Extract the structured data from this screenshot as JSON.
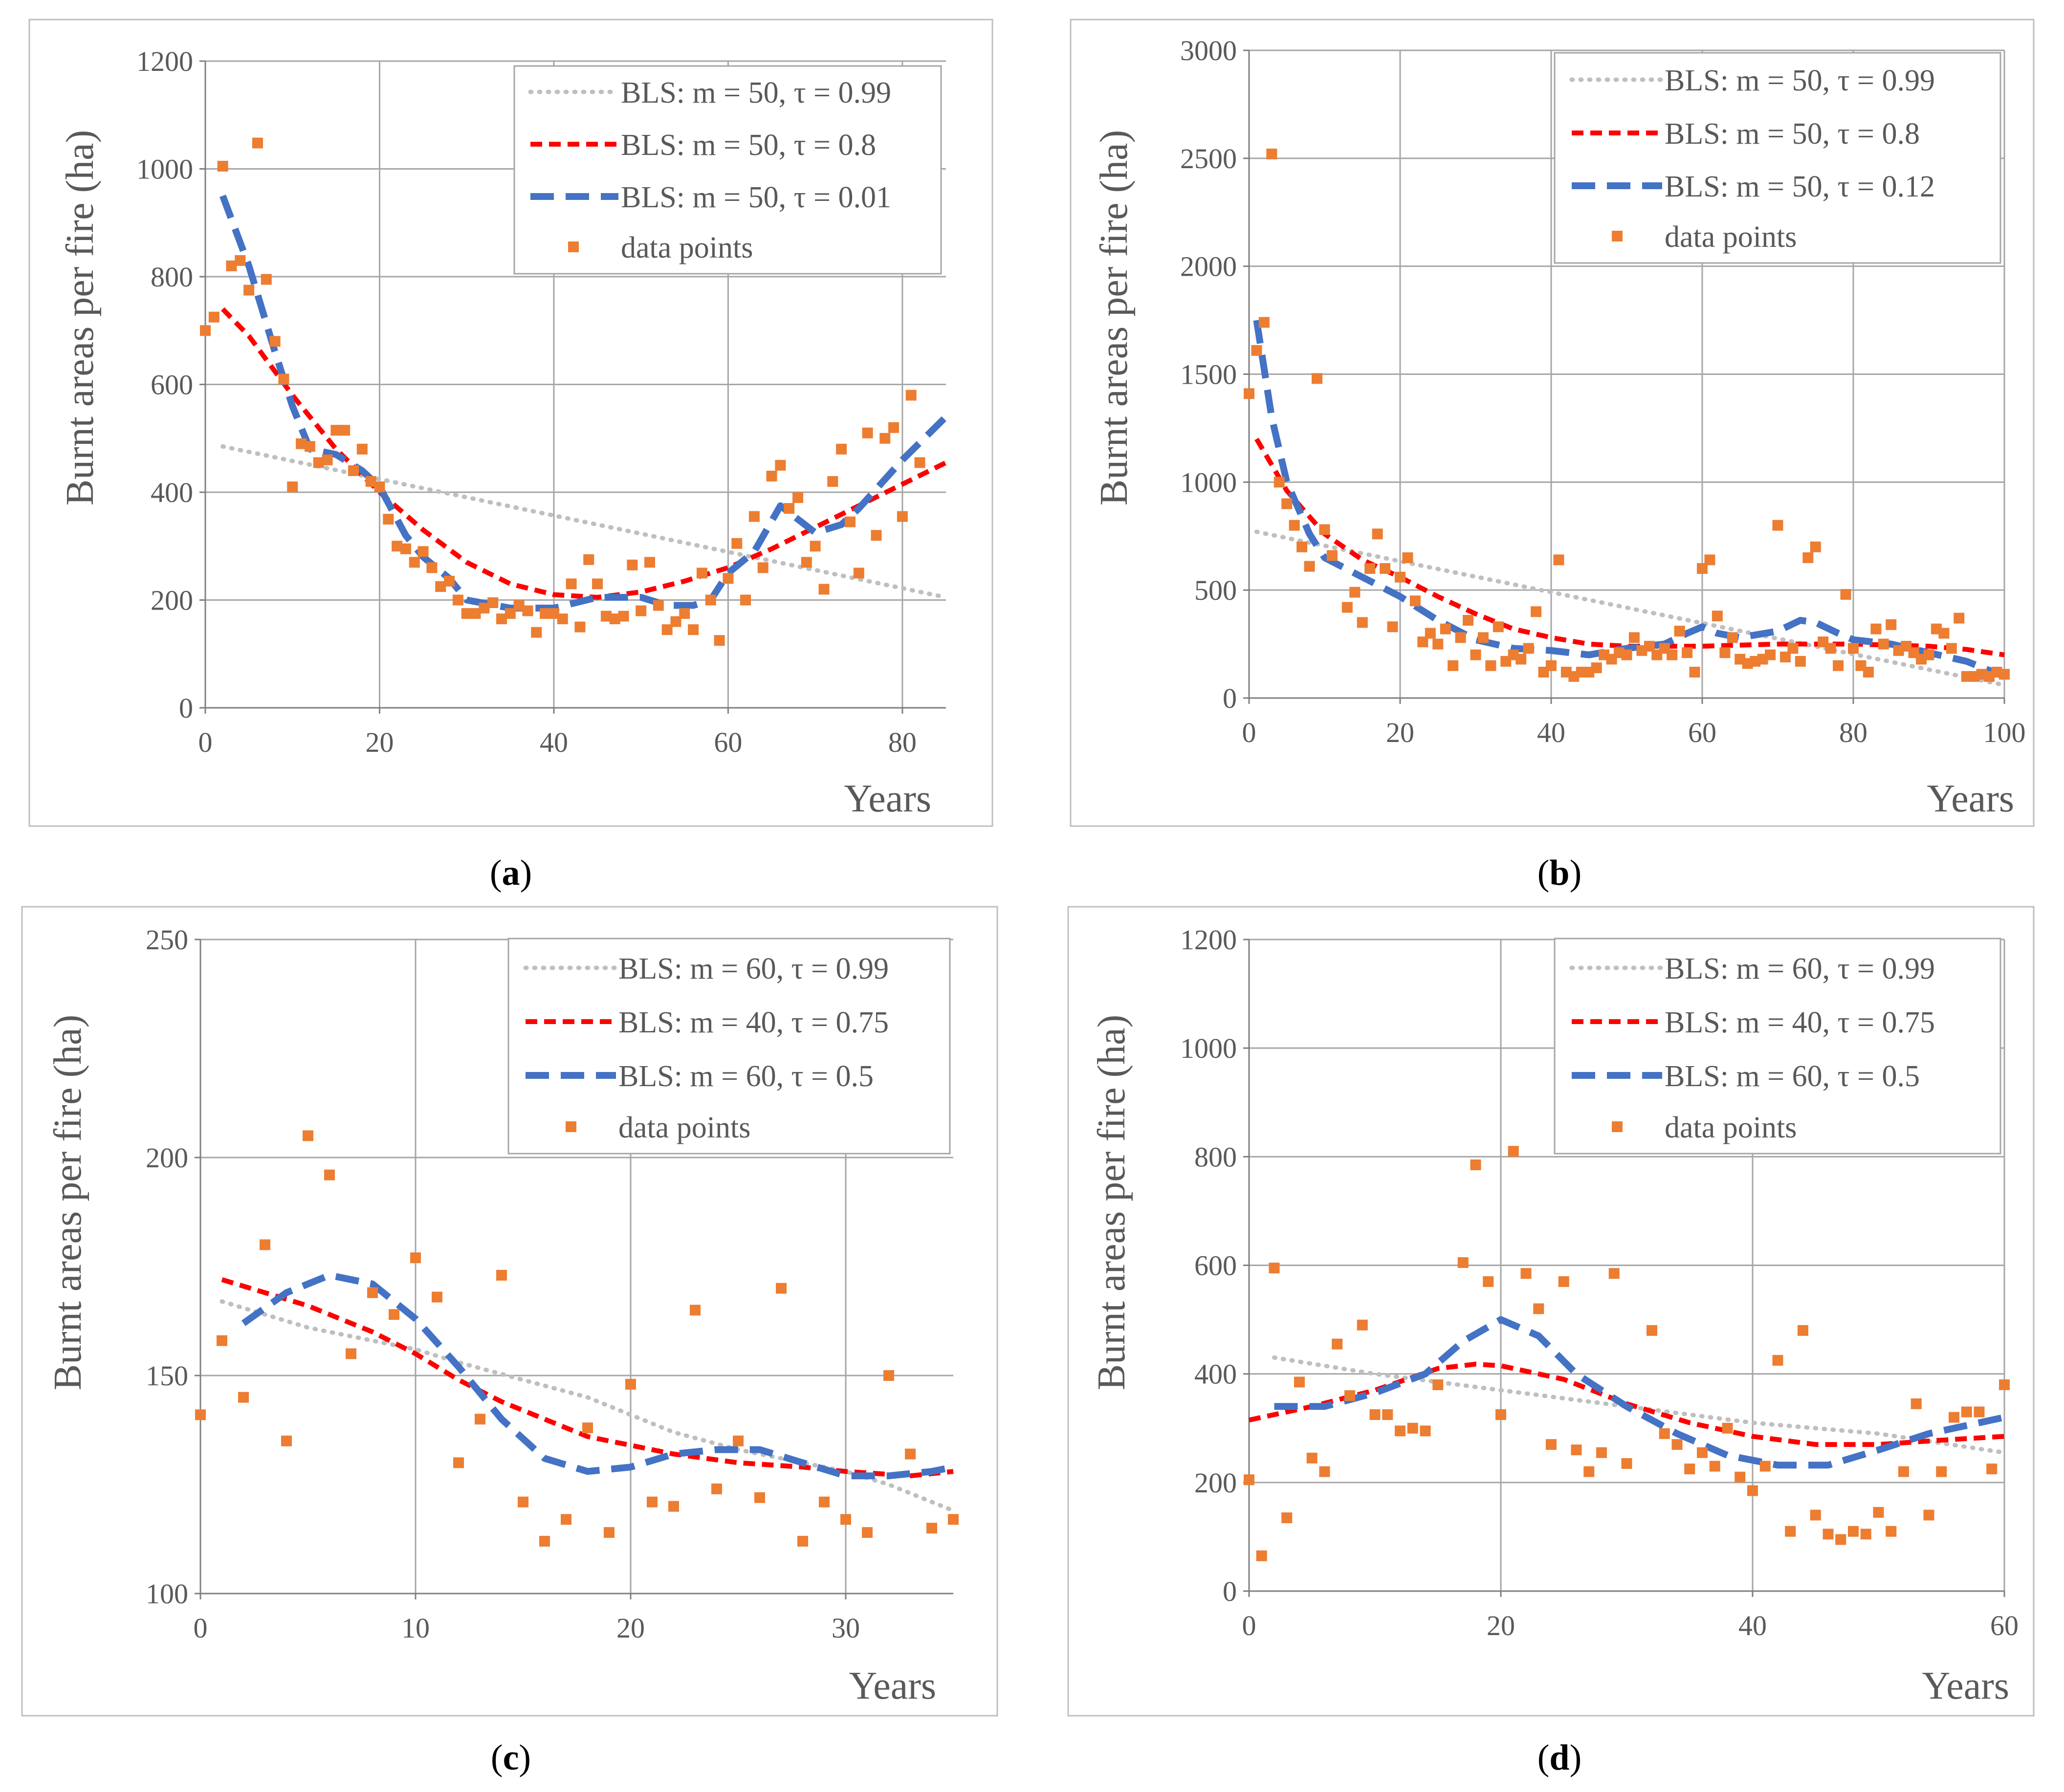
{
  "style": {
    "grid_color": "#a6a6a6",
    "axis_color": "#7f7f7f",
    "text_color": "#595959",
    "frame_color": "#bfbfbf",
    "series_colors": [
      "#bfbfbf",
      "#ff0000",
      "#4472c4"
    ],
    "points_color": "#ed7d31"
  },
  "chart_data": [
    {
      "type": "scatter",
      "caption": "(a)",
      "caption_letter": "a",
      "xlabel": "Years",
      "ylabel": "Burnt areas per fire (ha)",
      "xlim": [
        0,
        85
      ],
      "ylim": [
        0,
        1200
      ],
      "xticks": [
        0,
        20,
        40,
        60,
        80
      ],
      "yticks": [
        0,
        200,
        400,
        600,
        800,
        1000,
        1200
      ],
      "legend_position": "top-right",
      "series": [
        {
          "name": "BLS: m = 50, τ = 0.99",
          "style": "dotted",
          "x": [
            2,
            85
          ],
          "y": [
            485,
            205
          ]
        },
        {
          "name": "BLS: m = 50, τ = 0.8",
          "style": "dashed",
          "x": [
            2,
            5,
            10,
            15,
            20,
            25,
            30,
            35,
            40,
            45,
            50,
            55,
            60,
            65,
            70,
            75,
            80,
            85
          ],
          "y": [
            740,
            690,
            580,
            480,
            400,
            330,
            270,
            230,
            210,
            205,
            215,
            235,
            260,
            295,
            335,
            375,
            415,
            455
          ]
        },
        {
          "name": "BLS: m = 50, τ = 0.01",
          "style": "long-dashed",
          "x": [
            2,
            5,
            8,
            10,
            12,
            15,
            18,
            20,
            23,
            25,
            28,
            30,
            35,
            40,
            45,
            50,
            53,
            56,
            58,
            60,
            63,
            66,
            70,
            73,
            75,
            80,
            85
          ],
          "y": [
            950,
            820,
            660,
            560,
            480,
            470,
            440,
            410,
            320,
            280,
            240,
            200,
            185,
            185,
            205,
            205,
            190,
            190,
            200,
            250,
            290,
            375,
            325,
            340,
            370,
            460,
            540
          ]
        },
        {
          "name": "data points",
          "style": "markers",
          "x": [
            0,
            1,
            2,
            3,
            4,
            5,
            6,
            7,
            8,
            9,
            10,
            11,
            12,
            13,
            14,
            15,
            16,
            17,
            18,
            19,
            20,
            21,
            22,
            23,
            24,
            25,
            26,
            27,
            28,
            29,
            30,
            31,
            32,
            33,
            34,
            35,
            36,
            37,
            38,
            39,
            40,
            41,
            42,
            43,
            44,
            45,
            46,
            47,
            48,
            49,
            50,
            51,
            52,
            53,
            54,
            55,
            56,
            57,
            58,
            59,
            60,
            61,
            62,
            63,
            64,
            65,
            66,
            67,
            68,
            69,
            70,
            71,
            72,
            73,
            74,
            75,
            76,
            77,
            78,
            79,
            80,
            81,
            82
          ],
          "y": [
            700,
            725,
            1005,
            820,
            830,
            775,
            1048,
            795,
            680,
            610,
            410,
            490,
            485,
            455,
            460,
            515,
            515,
            440,
            480,
            420,
            410,
            350,
            300,
            295,
            270,
            290,
            260,
            225,
            235,
            200,
            175,
            175,
            185,
            195,
            165,
            175,
            190,
            180,
            140,
            175,
            175,
            165,
            230,
            150,
            275,
            230,
            170,
            165,
            170,
            265,
            180,
            270,
            190,
            145,
            160,
            175,
            145,
            250,
            200,
            125,
            240,
            305,
            200,
            355,
            260,
            430,
            450,
            370,
            390,
            270,
            300,
            220,
            420,
            480,
            345,
            250,
            510,
            320,
            500,
            520,
            355,
            580,
            455
          ]
        }
      ]
    },
    {
      "type": "scatter",
      "caption": "(b)",
      "caption_letter": "b",
      "xlabel": "Years",
      "ylabel": "Burnt areas per fire (ha)",
      "xlim": [
        0,
        100
      ],
      "ylim": [
        0,
        3000
      ],
      "xticks": [
        0,
        20,
        40,
        60,
        80,
        100
      ],
      "yticks": [
        0,
        500,
        1000,
        1500,
        2000,
        2500,
        3000
      ],
      "legend_position": "top-right",
      "series": [
        {
          "name": "BLS: m = 50, τ = 0.99",
          "style": "dotted",
          "x": [
            1,
            100
          ],
          "y": [
            770,
            60
          ]
        },
        {
          "name": "BLS: m = 50, τ = 0.8",
          "style": "dashed",
          "x": [
            1,
            5,
            10,
            15,
            20,
            25,
            30,
            35,
            40,
            45,
            50,
            55,
            60,
            65,
            70,
            75,
            80,
            85,
            90,
            95,
            100
          ],
          "y": [
            1200,
            960,
            760,
            640,
            560,
            470,
            390,
            320,
            280,
            250,
            240,
            240,
            240,
            245,
            250,
            250,
            250,
            245,
            240,
            225,
            200
          ]
        },
        {
          "name": "BLS: m = 50, τ = 0.12",
          "style": "long-dashed",
          "x": [
            1,
            3,
            5,
            8,
            10,
            15,
            20,
            25,
            30,
            35,
            40,
            45,
            50,
            55,
            58,
            60,
            62,
            65,
            70,
            73,
            75,
            78,
            80,
            85,
            90,
            95,
            100
          ],
          "y": [
            1750,
            1300,
            1000,
            760,
            650,
            560,
            470,
            360,
            270,
            230,
            220,
            200,
            230,
            250,
            300,
            330,
            300,
            280,
            310,
            360,
            350,
            300,
            270,
            250,
            210,
            170,
            100
          ]
        },
        {
          "name": "data points",
          "style": "markers",
          "x": [
            0,
            1,
            2,
            3,
            4,
            5,
            6,
            7,
            8,
            9,
            10,
            11,
            13,
            14,
            15,
            16,
            17,
            18,
            19,
            20,
            21,
            22,
            23,
            24,
            25,
            26,
            27,
            28,
            29,
            30,
            31,
            32,
            33,
            34,
            35,
            36,
            37,
            38,
            39,
            40,
            41,
            42,
            43,
            44,
            45,
            46,
            47,
            48,
            49,
            50,
            51,
            52,
            53,
            54,
            55,
            56,
            57,
            58,
            59,
            60,
            61,
            62,
            63,
            64,
            65,
            66,
            67,
            68,
            69,
            70,
            71,
            72,
            73,
            74,
            75,
            76,
            77,
            78,
            79,
            80,
            81,
            82,
            83,
            84,
            85,
            86,
            87,
            88,
            89,
            90,
            91,
            92,
            93,
            94,
            95,
            96,
            97,
            98,
            99,
            100
          ],
          "y": [
            1410,
            1610,
            1740,
            2520,
            1000,
            900,
            800,
            700,
            610,
            1480,
            780,
            660,
            420,
            490,
            350,
            600,
            760,
            600,
            330,
            560,
            650,
            450,
            260,
            300,
            250,
            320,
            150,
            280,
            360,
            200,
            280,
            150,
            330,
            170,
            200,
            180,
            230,
            400,
            120,
            150,
            640,
            120,
            100,
            120,
            120,
            140,
            200,
            180,
            210,
            200,
            280,
            220,
            240,
            200,
            230,
            200,
            310,
            210,
            120,
            600,
            640,
            380,
            210,
            280,
            180,
            160,
            170,
            180,
            200,
            800,
            190,
            230,
            170,
            650,
            700,
            260,
            230,
            150,
            480,
            230,
            150,
            120,
            320,
            250,
            340,
            220,
            240,
            210,
            180,
            200,
            320,
            300,
            230,
            370,
            100,
            100,
            110,
            100,
            120,
            110
          ]
        }
      ]
    },
    {
      "type": "scatter",
      "caption": "(c)",
      "caption_letter": "c",
      "xlabel": "Years",
      "ylabel": "Burnt areas per fire (ha)",
      "xlim": [
        0,
        35
      ],
      "ylim": [
        100,
        250
      ],
      "xticks": [
        0,
        10,
        20,
        30
      ],
      "yticks": [
        100,
        150,
        200,
        250
      ],
      "legend_position": "top-right",
      "series": [
        {
          "name": "BLS: m = 60, τ = 0.99",
          "style": "dotted",
          "x": [
            1,
            3,
            5,
            8,
            10,
            12,
            15,
            18,
            20,
            22,
            25,
            28,
            30,
            32,
            35
          ],
          "y": [
            167,
            164,
            161,
            158,
            156,
            153,
            149,
            145,
            141,
            137,
            133,
            130,
            128,
            125,
            119
          ]
        },
        {
          "name": "BLS: m = 40, τ = 0.75",
          "style": "dashed",
          "x": [
            1,
            3,
            5,
            8,
            10,
            12,
            14,
            16,
            18,
            20,
            22,
            25,
            28,
            30,
            33,
            35
          ],
          "y": [
            172,
            169,
            166,
            160,
            155,
            149,
            144,
            140,
            136,
            134,
            132,
            130,
            129,
            128,
            127,
            128
          ]
        },
        {
          "name": "BLS: m = 60, τ = 0.5",
          "style": "long-dashed",
          "x": [
            2,
            4,
            6,
            8,
            10,
            12,
            14,
            16,
            18,
            20,
            22,
            24,
            26,
            28,
            30,
            32,
            34,
            35
          ],
          "y": [
            162,
            169,
            173,
            171,
            163,
            152,
            140,
            131,
            128,
            129,
            132,
            133,
            133,
            130,
            127,
            127,
            128,
            129
          ]
        },
        {
          "name": "data points",
          "style": "markers",
          "x": [
            0,
            1,
            2,
            3,
            4,
            5,
            6,
            7,
            8,
            9,
            10,
            11,
            12,
            13,
            14,
            15,
            16,
            17,
            18,
            19,
            20,
            21,
            22,
            23,
            24,
            25,
            26,
            27,
            28,
            29,
            30,
            31,
            32,
            33,
            34,
            35
          ],
          "y": [
            141,
            158,
            145,
            180,
            135,
            205,
            196,
            155,
            169,
            164,
            177,
            168,
            130,
            140,
            173,
            121,
            112,
            117,
            138,
            114,
            148,
            121,
            120,
            165,
            124,
            135,
            122,
            170,
            112,
            121,
            117,
            114,
            150,
            132,
            115,
            117
          ]
        }
      ]
    },
    {
      "type": "scatter",
      "caption": "(d)",
      "caption_letter": "d",
      "xlabel": "Years",
      "ylabel": "Burnt areas per fire (ha)",
      "xlim": [
        0,
        60
      ],
      "ylim": [
        0,
        1200
      ],
      "xticks": [
        0,
        20,
        40,
        60
      ],
      "yticks": [
        0,
        200,
        400,
        600,
        800,
        1000,
        1200
      ],
      "legend_position": "top-right",
      "series": [
        {
          "name": "BLS: m = 60, τ = 0.99",
          "style": "dotted",
          "x": [
            2,
            10,
            20,
            30,
            40,
            50,
            60
          ],
          "y": [
            430,
            400,
            370,
            340,
            310,
            290,
            255
          ]
        },
        {
          "name": "BLS: m = 40, τ = 0.75",
          "style": "dashed",
          "x": [
            0,
            5,
            10,
            15,
            18,
            20,
            25,
            30,
            35,
            40,
            45,
            50,
            55,
            60
          ],
          "y": [
            315,
            340,
            370,
            410,
            418,
            415,
            390,
            345,
            310,
            285,
            270,
            270,
            278,
            285
          ]
        },
        {
          "name": "BLS: m = 60, τ = 0.5",
          "style": "long-dashed",
          "x": [
            2,
            6,
            10,
            14,
            17,
            20,
            23,
            26,
            30,
            34,
            38,
            42,
            46,
            50,
            54,
            58,
            60
          ],
          "y": [
            340,
            340,
            365,
            400,
            460,
            500,
            470,
            400,
            340,
            290,
            250,
            232,
            232,
            260,
            290,
            310,
            320
          ]
        },
        {
          "name": "data points",
          "style": "markers",
          "x": [
            0,
            1,
            2,
            3,
            4,
            5,
            6,
            7,
            8,
            9,
            10,
            11,
            12,
            13,
            14,
            15,
            17,
            18,
            19,
            20,
            21,
            22,
            23,
            24,
            25,
            26,
            27,
            28,
            29,
            30,
            32,
            33,
            34,
            35,
            36,
            37,
            38,
            39,
            40,
            41,
            42,
            43,
            44,
            45,
            46,
            47,
            48,
            49,
            50,
            51,
            52,
            53,
            54,
            55,
            56,
            57,
            58,
            59,
            60
          ],
          "y": [
            205,
            65,
            595,
            135,
            385,
            245,
            220,
            455,
            360,
            490,
            325,
            325,
            295,
            300,
            295,
            380,
            605,
            785,
            570,
            325,
            810,
            585,
            520,
            270,
            570,
            260,
            220,
            255,
            585,
            235,
            480,
            290,
            270,
            225,
            255,
            230,
            300,
            210,
            185,
            230,
            425,
            110,
            480,
            140,
            105,
            95,
            110,
            105,
            145,
            110,
            220,
            345,
            140,
            220,
            320,
            330,
            330,
            225,
            380
          ]
        }
      ]
    }
  ]
}
